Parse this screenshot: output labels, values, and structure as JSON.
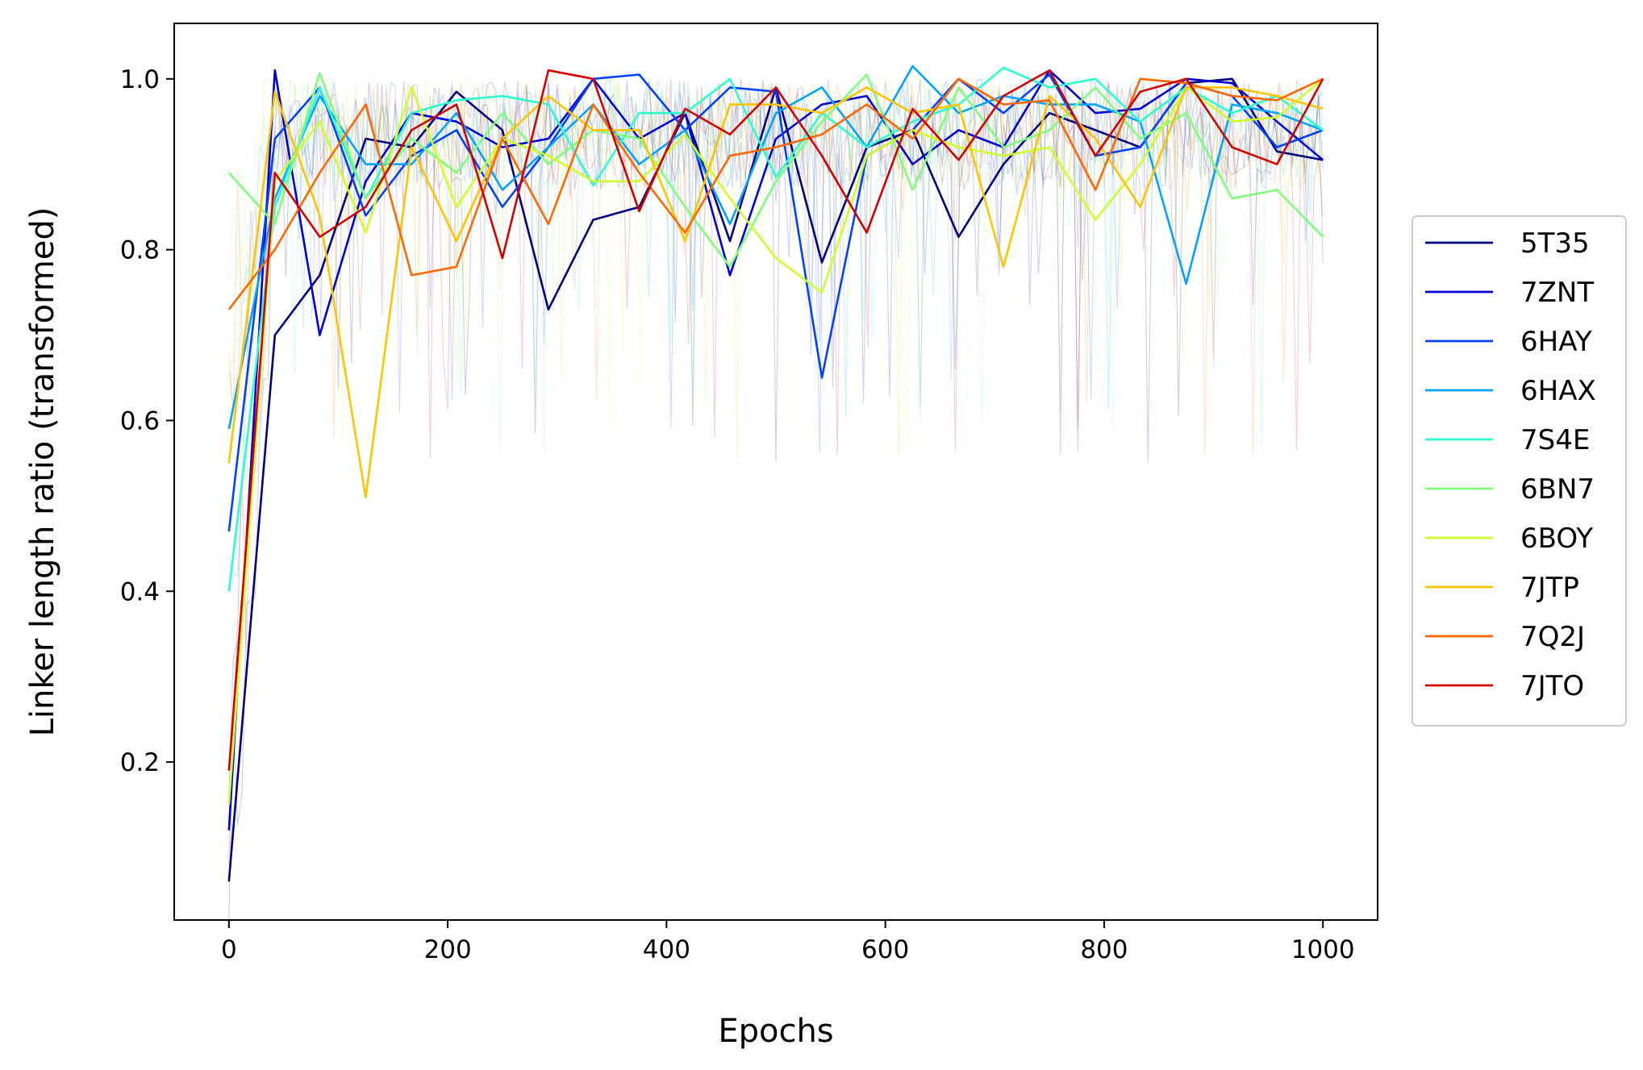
{
  "chart_data": {
    "type": "line",
    "xlabel": "Epochs",
    "ylabel": "Linker length ratio (transformed)",
    "xlim": [
      -50,
      1050
    ],
    "ylim": [
      0.015,
      1.065
    ],
    "xticks": [
      0,
      200,
      400,
      600,
      800,
      1000
    ],
    "yticks": [
      0.2,
      0.4,
      0.6,
      0.8,
      1.0
    ],
    "xtick_labels": [
      "0",
      "200",
      "400",
      "600",
      "800",
      "1000"
    ],
    "ytick_labels": [
      "0.2",
      "0.4",
      "0.6",
      "0.8",
      "1.0"
    ],
    "grid": false,
    "legend_position": "right",
    "raw_noise": {
      "band_low": 0.87,
      "band_high": 1.0,
      "min_low": 0.55,
      "note_visible": false
    },
    "x": [
      0,
      42,
      83,
      125,
      167,
      208,
      250,
      292,
      333,
      375,
      417,
      458,
      500,
      542,
      583,
      625,
      667,
      708,
      750,
      792,
      833,
      875,
      917,
      958,
      1000
    ],
    "series": [
      {
        "name": "5T35",
        "color": "#00007f",
        "values": [
          0.06,
          0.7,
          0.77,
          0.93,
          0.92,
          0.985,
          0.94,
          0.73,
          0.835,
          0.85,
          0.96,
          0.81,
          0.99,
          0.785,
          0.92,
          0.94,
          0.815,
          0.9,
          0.96,
          0.94,
          0.92,
          0.995,
          1.0,
          0.915,
          0.905
        ]
      },
      {
        "name": "7ZNT",
        "color": "#0000d6",
        "values": [
          0.12,
          1.01,
          0.7,
          0.88,
          0.96,
          0.95,
          0.92,
          0.93,
          1.0,
          0.93,
          0.96,
          0.77,
          0.93,
          0.97,
          0.98,
          0.9,
          0.94,
          0.92,
          1.01,
          0.96,
          0.965,
          1.0,
          0.995,
          0.95,
          0.905
        ]
      },
      {
        "name": "6HAY",
        "color": "#0041ff",
        "values": [
          0.47,
          0.93,
          0.99,
          0.84,
          0.91,
          0.94,
          0.85,
          0.92,
          1.0,
          1.005,
          0.94,
          0.99,
          0.985,
          0.65,
          0.91,
          0.94,
          1.0,
          0.96,
          1.005,
          0.91,
          0.92,
          0.995,
          0.98,
          0.92,
          0.94
        ]
      },
      {
        "name": "6HAX",
        "color": "#00a4ff",
        "values": [
          0.59,
          0.86,
          0.98,
          0.9,
          0.9,
          0.96,
          0.87,
          0.92,
          0.97,
          0.9,
          0.94,
          0.83,
          0.96,
          0.99,
          0.92,
          1.015,
          0.96,
          0.98,
          0.97,
          0.97,
          0.95,
          0.76,
          0.97,
          0.96,
          0.94
        ]
      },
      {
        "name": "7S4E",
        "color": "#29ffce",
        "values": [
          0.4,
          0.85,
          0.99,
          0.86,
          0.96,
          0.975,
          0.98,
          0.97,
          0.875,
          0.96,
          0.96,
          1.0,
          0.885,
          0.96,
          0.92,
          0.95,
          0.97,
          1.013,
          0.99,
          1.0,
          0.95,
          0.99,
          0.96,
          0.98,
          0.94
        ]
      },
      {
        "name": "6BN7",
        "color": "#7dff7a",
        "values": [
          0.89,
          0.83,
          1.007,
          0.86,
          0.93,
          0.89,
          0.96,
          0.9,
          0.94,
          0.93,
          0.85,
          0.78,
          0.88,
          0.95,
          1.005,
          0.87,
          0.99,
          0.92,
          0.94,
          0.99,
          0.93,
          0.96,
          0.86,
          0.87,
          0.815
        ]
      },
      {
        "name": "6BOY",
        "color": "#ceff29",
        "values": [
          0.15,
          0.88,
          0.95,
          0.82,
          0.99,
          0.85,
          0.93,
          0.91,
          0.88,
          0.88,
          0.935,
          0.86,
          0.79,
          0.75,
          0.91,
          0.94,
          0.92,
          0.91,
          0.92,
          0.835,
          0.9,
          0.99,
          0.95,
          0.955,
          1.0
        ]
      },
      {
        "name": "7JTP",
        "color": "#ffc400",
        "values": [
          0.55,
          0.985,
          0.84,
          0.51,
          0.92,
          0.81,
          0.93,
          0.98,
          0.94,
          0.94,
          0.81,
          0.97,
          0.97,
          0.96,
          0.99,
          0.96,
          0.97,
          0.78,
          0.98,
          0.93,
          0.85,
          0.99,
          0.99,
          0.98,
          0.965
        ]
      },
      {
        "name": "7Q2J",
        "color": "#ff6800",
        "values": [
          0.73,
          0.8,
          0.89,
          0.97,
          0.77,
          0.78,
          0.93,
          0.83,
          0.97,
          0.89,
          0.82,
          0.91,
          0.92,
          0.935,
          0.97,
          0.93,
          1.0,
          0.97,
          0.975,
          0.87,
          1.0,
          0.995,
          0.98,
          0.975,
          1.0
        ]
      },
      {
        "name": "7JTO",
        "color": "#d40000",
        "values": [
          0.19,
          0.89,
          0.815,
          0.85,
          0.94,
          0.97,
          0.79,
          1.01,
          1.0,
          0.845,
          0.965,
          0.935,
          0.99,
          0.91,
          0.82,
          0.965,
          0.905,
          0.98,
          1.01,
          0.91,
          0.985,
          1.0,
          0.92,
          0.9,
          1.0
        ]
      }
    ]
  }
}
